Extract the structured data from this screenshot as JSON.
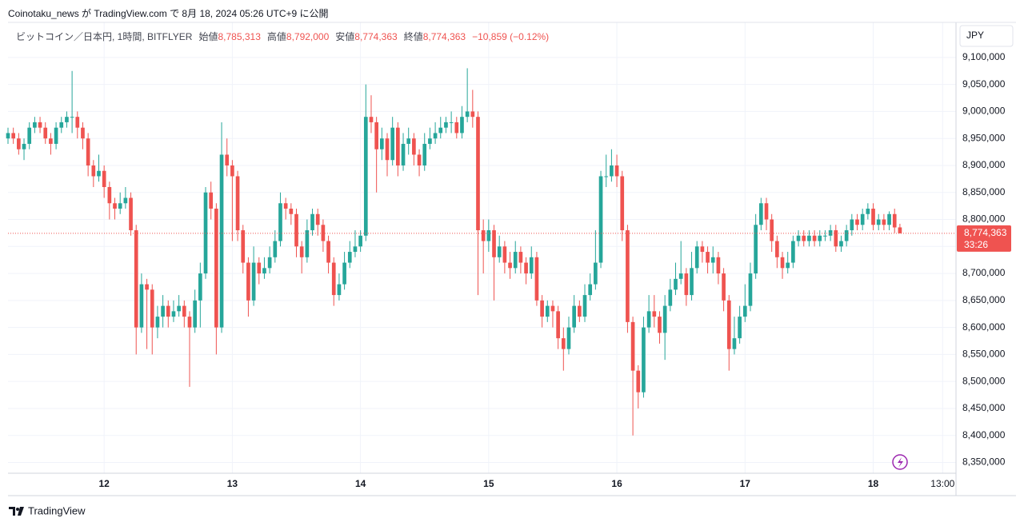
{
  "header": {
    "published": "Coinotaku_news が TradingView.com で 8月 18, 2024 05:26 UTC+9 に公開"
  },
  "legend": {
    "symbol": "ビットコイン／日本円, 1時間, BITFLYER",
    "open_label": "始値",
    "open": "8,785,313",
    "high_label": "高値",
    "high": "8,792,000",
    "low_label": "安値",
    "low": "8,774,363",
    "close_label": "終値",
    "close": "8,774,363",
    "change": "−10,859 (−0.12%)"
  },
  "currency": "JPY",
  "price_badge": {
    "price": "8,774,363",
    "countdown": "33:26"
  },
  "footer": {
    "brand": "TradingView"
  },
  "chart_data": {
    "type": "candlestick",
    "up_color": "#26a69a",
    "down_color": "#ef5350",
    "grid": true,
    "xlim": [
      0,
      177.5
    ],
    "ylim": [
      8330000,
      9162000
    ],
    "xticks": [
      {
        "value": 18,
        "label": "12"
      },
      {
        "value": 42,
        "label": "13"
      },
      {
        "value": 66,
        "label": "14"
      },
      {
        "value": 90,
        "label": "15"
      },
      {
        "value": 114,
        "label": "16"
      },
      {
        "value": 138,
        "label": "17"
      },
      {
        "value": 162,
        "label": "18"
      },
      {
        "value": 175,
        "label": "13:00"
      }
    ],
    "yticks": [
      {
        "value": 8350000,
        "label": "8,350,000"
      },
      {
        "value": 8400000,
        "label": "8,400,000"
      },
      {
        "value": 8450000,
        "label": "8,450,000"
      },
      {
        "value": 8500000,
        "label": "8,500,000"
      },
      {
        "value": 8550000,
        "label": "8,550,000"
      },
      {
        "value": 8600000,
        "label": "8,600,000"
      },
      {
        "value": 8650000,
        "label": "8,650,000"
      },
      {
        "value": 8700000,
        "label": "8,700,000"
      },
      {
        "value": 8750000,
        "label": "8,750,000"
      },
      {
        "value": 8800000,
        "label": "8,800,000"
      },
      {
        "value": 8850000,
        "label": "8,850,000"
      },
      {
        "value": 8900000,
        "label": "8,900,000"
      },
      {
        "value": 8950000,
        "label": "8,950,000"
      },
      {
        "value": 9000000,
        "label": "9,000,000"
      },
      {
        "value": 9050000,
        "label": "9,050,000"
      },
      {
        "value": 9100000,
        "label": "9,100,000"
      }
    ],
    "open": [
      8950000,
      8960000,
      8950000,
      8930000,
      8940000,
      8970000,
      8980000,
      8970000,
      8950000,
      8940000,
      8970000,
      8980000,
      8990000,
      8990000,
      8970000,
      8950000,
      8900000,
      8880000,
      8890000,
      8860000,
      8830000,
      8820000,
      8830000,
      8840000,
      8780000,
      8600000,
      8680000,
      8670000,
      8600000,
      8620000,
      8640000,
      8620000,
      8630000,
      8640000,
      8620000,
      8600000,
      8650000,
      8700000,
      8850000,
      8820000,
      8600000,
      8920000,
      8900000,
      8880000,
      8780000,
      8720000,
      8650000,
      8720000,
      8700000,
      8710000,
      8730000,
      8760000,
      8830000,
      8820000,
      8810000,
      8750000,
      8730000,
      8780000,
      8810000,
      8790000,
      8760000,
      8720000,
      8660000,
      8680000,
      8720000,
      8740000,
      8750000,
      8770000,
      8990000,
      8980000,
      8930000,
      8950000,
      8910000,
      8970000,
      8900000,
      8940000,
      8950000,
      8920000,
      8900000,
      8940000,
      8950000,
      8960000,
      8970000,
      8980000,
      8980000,
      8960000,
      8990000,
      9000000,
      8990000,
      8780000,
      8760000,
      8780000,
      8730000,
      8750000,
      8720000,
      8710000,
      8740000,
      8720000,
      8700000,
      8730000,
      8650000,
      8620000,
      8640000,
      8630000,
      8580000,
      8560000,
      8600000,
      8640000,
      8620000,
      8660000,
      8680000,
      8720000,
      8880000,
      8880000,
      8900000,
      8880000,
      8780000,
      8610000,
      8520000,
      8480000,
      8600000,
      8630000,
      8620000,
      8590000,
      8640000,
      8670000,
      8690000,
      8700000,
      8660000,
      8710000,
      8750000,
      8740000,
      8720000,
      8730000,
      8700000,
      8650000,
      8560000,
      8580000,
      8620000,
      8640000,
      8700000,
      8790000,
      8830000,
      8800000,
      8760000,
      8730000,
      8710000,
      8720000,
      8760000,
      8770000,
      8760000,
      8770000,
      8760000,
      8770000,
      8770000,
      8780000,
      8750000,
      8760000,
      8780000,
      8800000,
      8790000,
      8810000,
      8820000,
      8790000,
      8800000,
      8790000,
      8810000,
      8785313
    ],
    "high": [
      8970000,
      8970000,
      8960000,
      8950000,
      8980000,
      8990000,
      8990000,
      8980000,
      8960000,
      8980000,
      8990000,
      9000000,
      9075000,
      9000000,
      8980000,
      8960000,
      8910000,
      8920000,
      8900000,
      8870000,
      8840000,
      8850000,
      8860000,
      8850000,
      8790000,
      8700000,
      8690000,
      8680000,
      8640000,
      8660000,
      8650000,
      8650000,
      8660000,
      8650000,
      8630000,
      8670000,
      8720000,
      8860000,
      8870000,
      8830000,
      8980000,
      8950000,
      8910000,
      8890000,
      8790000,
      8730000,
      8750000,
      8730000,
      8730000,
      8750000,
      8780000,
      8850000,
      8840000,
      8830000,
      8820000,
      8760000,
      8800000,
      8820000,
      8820000,
      8800000,
      8770000,
      8730000,
      8700000,
      8740000,
      8760000,
      8780000,
      8780000,
      9050000,
      9030000,
      8990000,
      8970000,
      8960000,
      8990000,
      8980000,
      8960000,
      8970000,
      8960000,
      8930000,
      8960000,
      8970000,
      8980000,
      8990000,
      8990000,
      9000000,
      8990000,
      9010000,
      9080000,
      9040000,
      9000000,
      8800000,
      8800000,
      8790000,
      8770000,
      8760000,
      8740000,
      8760000,
      8750000,
      8730000,
      8750000,
      8740000,
      8660000,
      8650000,
      8650000,
      8640000,
      8600000,
      8620000,
      8660000,
      8650000,
      8680000,
      8700000,
      8780000,
      8890000,
      8920000,
      8930000,
      8920000,
      8890000,
      8790000,
      8620000,
      8530000,
      8620000,
      8660000,
      8660000,
      8630000,
      8660000,
      8690000,
      8720000,
      8760000,
      8710000,
      8740000,
      8760000,
      8760000,
      8750000,
      8750000,
      8740000,
      8710000,
      8660000,
      8620000,
      8640000,
      8680000,
      8720000,
      8810000,
      8840000,
      8840000,
      8810000,
      8770000,
      8740000,
      8740000,
      8770000,
      8780000,
      8780000,
      8780000,
      8780000,
      8780000,
      8780000,
      8790000,
      8790000,
      8770000,
      8790000,
      8810000,
      8810000,
      8820000,
      8830000,
      8830000,
      8810000,
      8810000,
      8815000,
      8820000,
      8792000
    ],
    "low": [
      8940000,
      8940000,
      8920000,
      8910000,
      8930000,
      8960000,
      8960000,
      8940000,
      8920000,
      8930000,
      8960000,
      8970000,
      8960000,
      8950000,
      8930000,
      8880000,
      8860000,
      8870000,
      8840000,
      8800000,
      8800000,
      8810000,
      8820000,
      8770000,
      8550000,
      8590000,
      8560000,
      8550000,
      8580000,
      8600000,
      8600000,
      8610000,
      8620000,
      8600000,
      8490000,
      8590000,
      8600000,
      8690000,
      8800000,
      8550000,
      8590000,
      8880000,
      8760000,
      8760000,
      8700000,
      8620000,
      8640000,
      8680000,
      8690000,
      8700000,
      8720000,
      8750000,
      8800000,
      8790000,
      8730000,
      8700000,
      8720000,
      8770000,
      8770000,
      8740000,
      8700000,
      8640000,
      8650000,
      8670000,
      8710000,
      8730000,
      8740000,
      8760000,
      8960000,
      8850000,
      8910000,
      8880000,
      8900000,
      8880000,
      8890000,
      8920000,
      8900000,
      8880000,
      8890000,
      8930000,
      8940000,
      8950000,
      8960000,
      8960000,
      8950000,
      8950000,
      8980000,
      8970000,
      8660000,
      8700000,
      8740000,
      8650000,
      8720000,
      8700000,
      8690000,
      8700000,
      8700000,
      8680000,
      8690000,
      8640000,
      8600000,
      8610000,
      8600000,
      8560000,
      8520000,
      8550000,
      8590000,
      8610000,
      8610000,
      8650000,
      8670000,
      8710000,
      8860000,
      8870000,
      8860000,
      8760000,
      8590000,
      8400000,
      8450000,
      8470000,
      8590000,
      8600000,
      8570000,
      8540000,
      8630000,
      8660000,
      8680000,
      8640000,
      8650000,
      8700000,
      8720000,
      8700000,
      8700000,
      8680000,
      8630000,
      8520000,
      8550000,
      8570000,
      8610000,
      8630000,
      8690000,
      8780000,
      8780000,
      8740000,
      8710000,
      8690000,
      8700000,
      8710000,
      8750000,
      8750000,
      8750000,
      8750000,
      8750000,
      8760000,
      8760000,
      8740000,
      8740000,
      8750000,
      8770000,
      8780000,
      8780000,
      8800000,
      8780000,
      8780000,
      8780000,
      8780000,
      8775000,
      8774363
    ],
    "close": [
      8960000,
      8950000,
      8930000,
      8940000,
      8970000,
      8980000,
      8970000,
      8950000,
      8940000,
      8970000,
      8980000,
      8990000,
      8990000,
      8970000,
      8950000,
      8900000,
      8880000,
      8890000,
      8860000,
      8830000,
      8820000,
      8830000,
      8840000,
      8780000,
      8600000,
      8680000,
      8670000,
      8600000,
      8620000,
      8640000,
      8620000,
      8630000,
      8640000,
      8620000,
      8600000,
      8650000,
      8700000,
      8850000,
      8820000,
      8600000,
      8920000,
      8900000,
      8880000,
      8780000,
      8720000,
      8650000,
      8720000,
      8700000,
      8710000,
      8730000,
      8760000,
      8830000,
      8820000,
      8810000,
      8750000,
      8730000,
      8780000,
      8810000,
      8790000,
      8760000,
      8720000,
      8660000,
      8680000,
      8720000,
      8740000,
      8750000,
      8770000,
      8990000,
      8980000,
      8930000,
      8950000,
      8910000,
      8970000,
      8900000,
      8940000,
      8950000,
      8920000,
      8900000,
      8940000,
      8950000,
      8960000,
      8970000,
      8980000,
      8980000,
      8960000,
      8990000,
      9000000,
      8990000,
      8780000,
      8760000,
      8780000,
      8730000,
      8750000,
      8720000,
      8710000,
      8740000,
      8720000,
      8700000,
      8730000,
      8650000,
      8620000,
      8640000,
      8630000,
      8580000,
      8560000,
      8600000,
      8640000,
      8620000,
      8660000,
      8680000,
      8720000,
      8880000,
      8880000,
      8900000,
      8880000,
      8780000,
      8610000,
      8520000,
      8480000,
      8600000,
      8630000,
      8620000,
      8590000,
      8640000,
      8670000,
      8690000,
      8700000,
      8660000,
      8710000,
      8750000,
      8740000,
      8720000,
      8730000,
      8700000,
      8650000,
      8560000,
      8580000,
      8620000,
      8640000,
      8700000,
      8790000,
      8830000,
      8800000,
      8760000,
      8730000,
      8710000,
      8720000,
      8760000,
      8770000,
      8760000,
      8770000,
      8760000,
      8770000,
      8770000,
      8780000,
      8750000,
      8760000,
      8780000,
      8800000,
      8790000,
      8810000,
      8820000,
      8790000,
      8800000,
      8790000,
      8810000,
      8785222,
      8774363
    ]
  }
}
